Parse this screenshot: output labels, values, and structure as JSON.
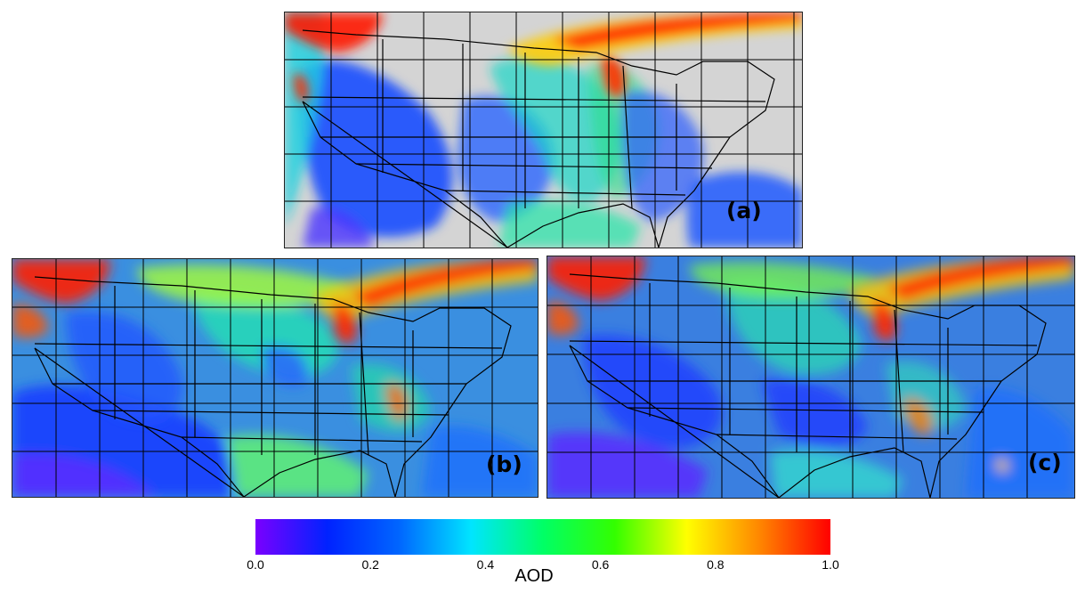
{
  "panels": [
    {
      "id": "a",
      "label": "(a)",
      "background": "#d4d4d4",
      "missing_data_color": "#d4d4d4"
    },
    {
      "id": "b",
      "label": "(b)",
      "background": "#3a8fe0"
    },
    {
      "id": "c",
      "label": "(c)",
      "background": "#3a7fe0"
    }
  ],
  "colorbar": {
    "title": "AOD",
    "range": [
      0.0,
      1.0
    ],
    "ticks": [
      "0.0",
      "0.2",
      "0.4",
      "0.6",
      "0.8",
      "1.0"
    ],
    "tick_values": [
      0.0,
      0.2,
      0.4,
      0.6,
      0.8,
      1.0
    ],
    "colors": [
      "#7a00ff",
      "#0022ff",
      "#0066ff",
      "#00e5ff",
      "#00ff66",
      "#33ff00",
      "#ffff00",
      "#ff8800",
      "#ff0000"
    ]
  }
}
